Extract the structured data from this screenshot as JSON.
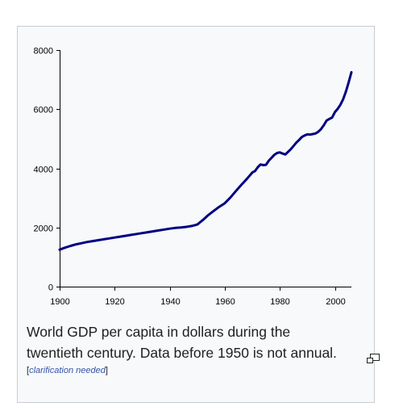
{
  "caption": {
    "text": "World GDP per capita in dollars during the twentieth century. Data before 1950 is not annual.",
    "footnote_open": "[",
    "footnote_text": "clarification needed",
    "footnote_close": "]"
  },
  "icons": {
    "enlarge": "magnify-clip-icon"
  },
  "colors": {
    "line": "#000080",
    "frame_bg": "#f8f9fa",
    "frame_border": "#c8ccd1",
    "link": "#3355aa"
  },
  "chart_data": {
    "type": "line",
    "title": "",
    "xlabel": "",
    "ylabel": "",
    "xlim": [
      1900,
      2006
    ],
    "ylim": [
      0,
      8000
    ],
    "xticks": [
      1900,
      1920,
      1940,
      1960,
      1980,
      2000
    ],
    "yticks": [
      0,
      2000,
      4000,
      6000,
      8000
    ],
    "grid": false,
    "series": [
      {
        "x": [
          1900,
          1902,
          1904,
          1906,
          1908,
          1910,
          1912,
          1914,
          1916,
          1918,
          1920,
          1922,
          1924,
          1926,
          1928,
          1930,
          1932,
          1934,
          1936,
          1938,
          1940,
          1942,
          1944,
          1946,
          1948,
          1950,
          1952,
          1954,
          1956,
          1958,
          1960,
          1962,
          1964,
          1966,
          1968,
          1970,
          1971,
          1972,
          1973,
          1974,
          1975,
          1976,
          1977,
          1978,
          1979,
          1980,
          1981,
          1982,
          1983,
          1984,
          1985,
          1986,
          1987,
          1988,
          1989,
          1990,
          1991,
          1992,
          1993,
          1994,
          1995,
          1996,
          1997,
          1998,
          1999,
          2000,
          2001,
          2002,
          2003,
          2004,
          2005,
          2006
        ],
        "y": [
          1250,
          1320,
          1380,
          1430,
          1470,
          1510,
          1540,
          1570,
          1600,
          1630,
          1660,
          1690,
          1720,
          1750,
          1780,
          1810,
          1840,
          1870,
          1900,
          1930,
          1960,
          1985,
          2000,
          2020,
          2050,
          2100,
          2250,
          2420,
          2560,
          2700,
          2820,
          3010,
          3230,
          3440,
          3640,
          3860,
          3910,
          4040,
          4130,
          4110,
          4120,
          4260,
          4360,
          4460,
          4520,
          4540,
          4500,
          4470,
          4560,
          4650,
          4760,
          4870,
          4960,
          5060,
          5110,
          5150,
          5140,
          5160,
          5180,
          5240,
          5330,
          5460,
          5620,
          5670,
          5720,
          5900,
          6010,
          6150,
          6340,
          6600,
          6910,
          7250
        ]
      }
    ]
  }
}
